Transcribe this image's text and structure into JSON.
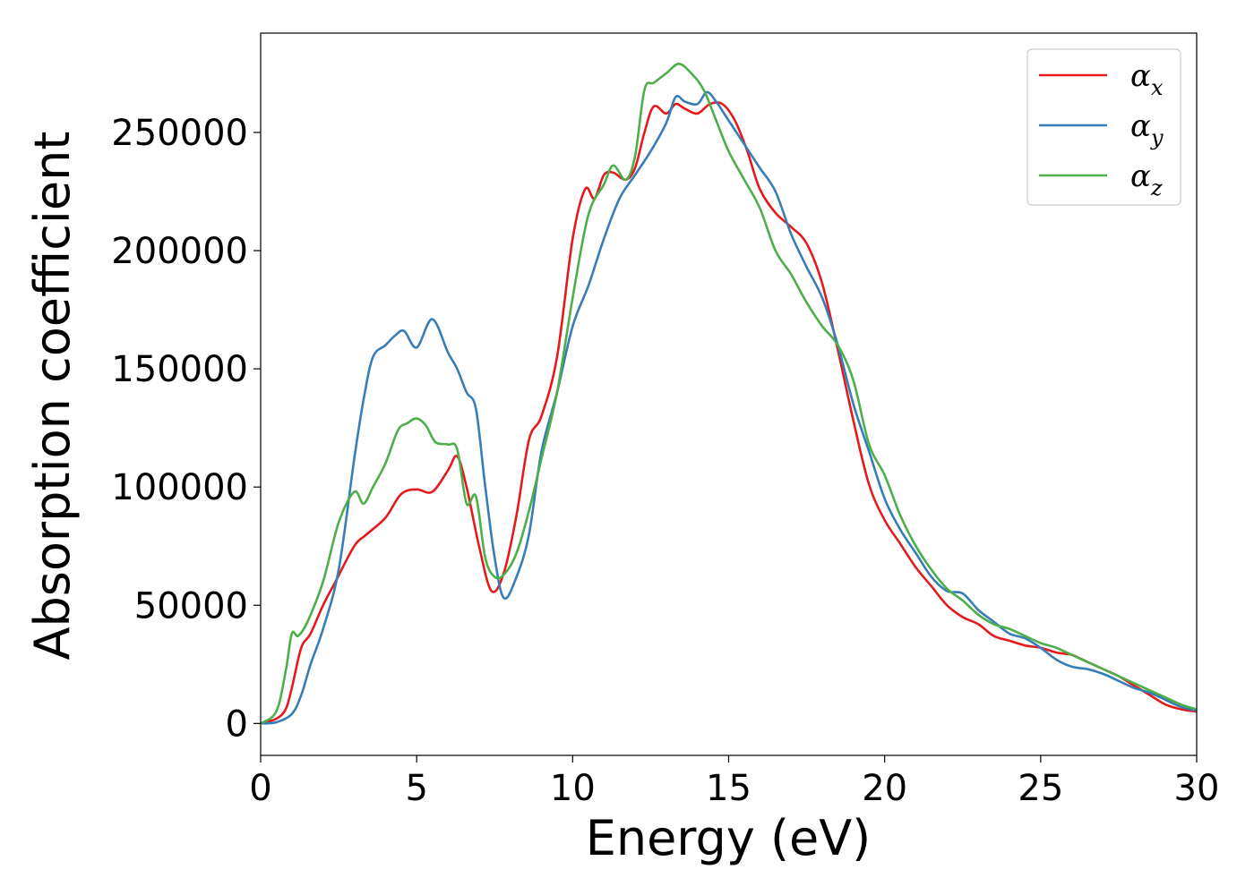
{
  "chart_data": {
    "type": "line",
    "title": "",
    "xlabel": "Energy (eV)",
    "ylabel": "Absorption coefficient",
    "xlim": [
      0,
      30
    ],
    "ylim": [
      -13500,
      292000
    ],
    "xticks": [
      0,
      5,
      10,
      15,
      20,
      25,
      30
    ],
    "yticks": [
      0,
      50000,
      100000,
      150000,
      200000,
      250000
    ],
    "grid": false,
    "legend_position": "top-right",
    "series": [
      {
        "name": "αx",
        "legend_base": "α",
        "legend_sub": "x",
        "color": "#e41a1c",
        "x": [
          0,
          0.5,
          0.8,
          1.0,
          1.3,
          1.6,
          2.0,
          2.4,
          3.0,
          3.4,
          4.0,
          4.5,
          5.0,
          5.5,
          6.0,
          6.3,
          6.6,
          7.0,
          7.4,
          7.8,
          8.2,
          8.6,
          9.0,
          9.5,
          10.0,
          10.4,
          10.7,
          11.0,
          11.3,
          11.7,
          12.0,
          12.3,
          12.6,
          13.0,
          13.3,
          13.6,
          14.0,
          14.4,
          14.8,
          15.2,
          15.6,
          16.0,
          16.5,
          17.0,
          17.5,
          18.0,
          18.5,
          19.0,
          19.5,
          20.0,
          20.5,
          21.0,
          21.5,
          22.0,
          22.5,
          23.0,
          23.5,
          24.0,
          24.5,
          25.0,
          25.5,
          26.0,
          26.5,
          27.0,
          27.5,
          28.0,
          28.5,
          29.0,
          29.5,
          30.0
        ],
        "values": [
          0,
          2000,
          6000,
          15000,
          32000,
          38000,
          50000,
          60000,
          75000,
          80000,
          87000,
          97000,
          99000,
          98000,
          107000,
          113000,
          100000,
          75000,
          56000,
          64000,
          88000,
          120000,
          130000,
          155000,
          205000,
          226000,
          222000,
          232000,
          233000,
          230000,
          235000,
          250000,
          261000,
          258000,
          262000,
          260000,
          258000,
          262000,
          262000,
          255000,
          242000,
          226000,
          216000,
          210000,
          203000,
          186000,
          158000,
          128000,
          101000,
          86000,
          76000,
          66000,
          58000,
          50000,
          45000,
          42000,
          37000,
          35000,
          33000,
          32000,
          30000,
          29000,
          26000,
          23000,
          20000,
          16000,
          12000,
          8000,
          6000,
          5000
        ]
      },
      {
        "name": "αy",
        "legend_base": "α",
        "legend_sub": "y",
        "color": "#377eb8",
        "x": [
          0,
          0.5,
          1.0,
          1.3,
          1.6,
          2.0,
          2.5,
          3.0,
          3.3,
          3.6,
          4.0,
          4.3,
          4.6,
          5.0,
          5.5,
          6.0,
          6.3,
          6.6,
          6.9,
          7.2,
          7.5,
          7.8,
          8.2,
          8.6,
          9.0,
          9.5,
          10.0,
          10.5,
          11.0,
          11.5,
          12.0,
          12.5,
          13.0,
          13.3,
          13.6,
          14.0,
          14.3,
          14.6,
          15.0,
          15.5,
          16.0,
          16.5,
          17.0,
          17.5,
          18.0,
          18.5,
          19.0,
          19.5,
          20.0,
          20.5,
          21.0,
          21.5,
          22.0,
          22.5,
          23.0,
          23.5,
          24.0,
          24.5,
          25.0,
          25.5,
          26.0,
          26.5,
          27.0,
          27.5,
          28.0,
          28.5,
          29.0,
          29.5,
          30.0
        ],
        "values": [
          0,
          500,
          4000,
          12000,
          25000,
          40000,
          65000,
          112000,
          137000,
          155000,
          160000,
          164000,
          166000,
          159000,
          171000,
          157000,
          150000,
          140000,
          133000,
          100000,
          70000,
          53000,
          62000,
          80000,
          115000,
          140000,
          168000,
          185000,
          205000,
          222000,
          232000,
          242000,
          254000,
          265000,
          263000,
          262000,
          267000,
          263000,
          255000,
          245000,
          235000,
          225000,
          207000,
          193000,
          180000,
          160000,
          135000,
          115000,
          95000,
          82000,
          72000,
          62000,
          56000,
          55000,
          48000,
          43000,
          38000,
          36000,
          32000,
          27000,
          24000,
          23000,
          21000,
          18000,
          15000,
          13000,
          10000,
          7000,
          5500
        ]
      },
      {
        "name": "αz",
        "legend_base": "α",
        "legend_sub": "z",
        "color": "#4daf4a",
        "x": [
          0,
          0.5,
          0.8,
          1.0,
          1.2,
          1.5,
          2.0,
          2.5,
          3.0,
          3.3,
          3.6,
          4.0,
          4.4,
          4.7,
          5.0,
          5.3,
          5.6,
          6.0,
          6.3,
          6.6,
          6.9,
          7.2,
          7.5,
          7.8,
          8.2,
          8.6,
          9.0,
          9.5,
          10.0,
          10.5,
          11.0,
          11.3,
          11.7,
          12.0,
          12.3,
          12.6,
          13.0,
          13.4,
          13.8,
          14.2,
          14.6,
          15.0,
          15.5,
          16.0,
          16.5,
          17.0,
          17.5,
          18.0,
          18.5,
          19.0,
          19.5,
          20.0,
          20.5,
          21.0,
          21.5,
          22.0,
          22.5,
          23.0,
          23.5,
          24.0,
          24.5,
          25.0,
          25.5,
          26.0,
          26.5,
          27.0,
          27.5,
          28.0,
          28.5,
          29.0,
          29.5,
          30.0
        ],
        "values": [
          0,
          5000,
          22000,
          38000,
          37000,
          43000,
          60000,
          85000,
          98000,
          93000,
          100000,
          110000,
          124000,
          127000,
          129000,
          126000,
          119000,
          118000,
          116000,
          93000,
          96000,
          70000,
          62000,
          63000,
          72000,
          90000,
          112000,
          140000,
          180000,
          215000,
          228000,
          236000,
          230000,
          240000,
          268000,
          271000,
          275000,
          279000,
          275000,
          268000,
          255000,
          242000,
          230000,
          218000,
          200000,
          190000,
          178000,
          168000,
          160000,
          145000,
          118000,
          105000,
          88000,
          75000,
          65000,
          57000,
          52000,
          46000,
          42000,
          40000,
          37000,
          34000,
          32000,
          29000,
          26000,
          23000,
          20000,
          17000,
          14000,
          11000,
          8000,
          6000
        ]
      }
    ]
  }
}
